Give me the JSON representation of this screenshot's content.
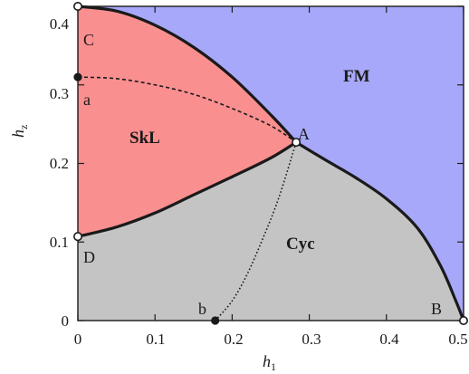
{
  "axes": {
    "x_title": "h",
    "x_title_sub": "1",
    "y_title": "h",
    "y_title_sub": "z",
    "x_ticks": [
      "0",
      "0.1",
      "0.2",
      "0.3",
      "0.4",
      "0.5"
    ],
    "y_ticks": [
      "0",
      "0.1",
      "0.2",
      "0.3",
      "0.4"
    ]
  },
  "regions": {
    "fm": {
      "label": "FM",
      "color": "#a8a8fa"
    },
    "skl": {
      "label": "SkL",
      "color": "#fa8f8f"
    },
    "cyc": {
      "label": "Cyc",
      "color": "#c4c4c4"
    }
  },
  "points": {
    "A": {
      "label": "A",
      "h1": 0.283,
      "hz": 0.227
    },
    "B": {
      "label": "B",
      "h1": 0.5,
      "hz": 0.0
    },
    "C": {
      "label": "C",
      "h1": 0.0,
      "hz": 0.4
    },
    "D": {
      "label": "D",
      "h1": 0.0,
      "hz": 0.107
    },
    "a": {
      "label": "a",
      "h1": 0.0,
      "hz": 0.31
    },
    "b": {
      "label": "b",
      "h1": 0.178,
      "hz": 0.0
    }
  },
  "chart_data": {
    "type": "phase_diagram",
    "xlim": [
      0,
      0.5
    ],
    "ylim": [
      0,
      0.4
    ],
    "boundaries": [
      {
        "name": "C-A",
        "style": "solid",
        "points": [
          [
            0,
            0.4
          ],
          [
            0.05,
            0.394
          ],
          [
            0.1,
            0.376
          ],
          [
            0.15,
            0.348
          ],
          [
            0.2,
            0.31
          ],
          [
            0.25,
            0.262
          ],
          [
            0.283,
            0.227
          ]
        ]
      },
      {
        "name": "D-A",
        "style": "solid",
        "points": [
          [
            0,
            0.107
          ],
          [
            0.05,
            0.119
          ],
          [
            0.1,
            0.137
          ],
          [
            0.15,
            0.16
          ],
          [
            0.2,
            0.183
          ],
          [
            0.25,
            0.207
          ],
          [
            0.283,
            0.227
          ]
        ]
      },
      {
        "name": "A-B",
        "style": "solid",
        "points": [
          [
            0.283,
            0.227
          ],
          [
            0.32,
            0.205
          ],
          [
            0.36,
            0.182
          ],
          [
            0.4,
            0.155
          ],
          [
            0.44,
            0.118
          ],
          [
            0.47,
            0.07
          ],
          [
            0.49,
            0.025
          ],
          [
            0.5,
            0.0
          ]
        ]
      },
      {
        "name": "a-A",
        "style": "dashed",
        "points": [
          [
            0,
            0.31
          ],
          [
            0.05,
            0.308
          ],
          [
            0.1,
            0.3
          ],
          [
            0.15,
            0.288
          ],
          [
            0.2,
            0.27
          ],
          [
            0.25,
            0.248
          ],
          [
            0.283,
            0.227
          ]
        ]
      },
      {
        "name": "b-A",
        "style": "dotted",
        "points": [
          [
            0.178,
            0.0
          ],
          [
            0.2,
            0.025
          ],
          [
            0.22,
            0.06
          ],
          [
            0.24,
            0.105
          ],
          [
            0.26,
            0.155
          ],
          [
            0.283,
            0.227
          ]
        ]
      }
    ]
  }
}
